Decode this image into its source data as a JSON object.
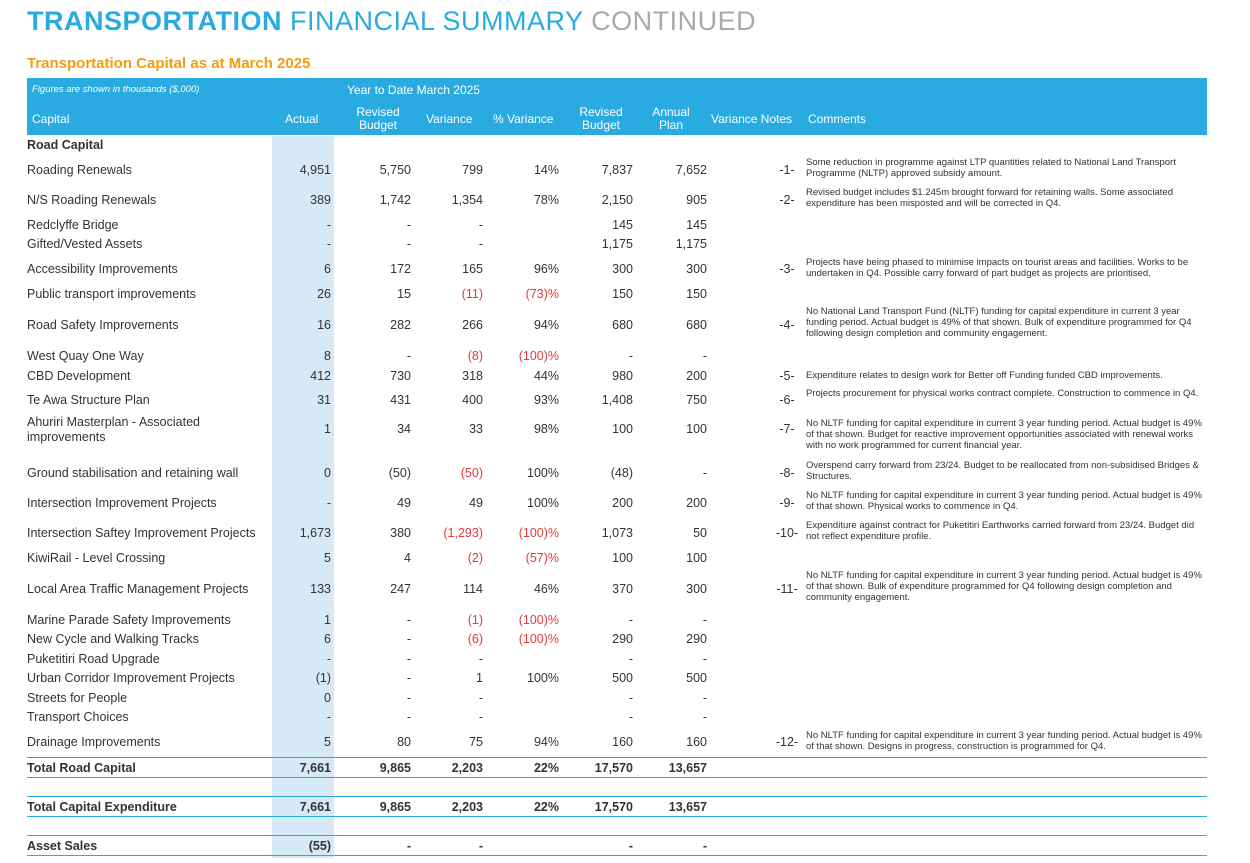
{
  "title": {
    "bold": "TRANSPORTATION",
    "mid": "FINANCIAL SUMMARY",
    "end": "CONTINUED"
  },
  "subtitle": "Transportation Capital as at March 2025",
  "header": {
    "figures_note": "Figures are shown in thousands ($,000)",
    "ytd_label": "Year to Date  March 2025",
    "capital": "Capital",
    "actual": "Actual",
    "revised_budget": "Revised Budget",
    "variance": "Variance",
    "pct_variance": "% Variance",
    "revised_budget2": "Revised Budget",
    "annual_plan": "Annual Plan",
    "variance_notes": "Variance  Notes",
    "comments": "Comments"
  },
  "section_label": "Road Capital",
  "rows": [
    {
      "name": "Roading Renewals",
      "actual": "4,951",
      "rb": "5,750",
      "var": "799",
      "pct": "14%",
      "rb2": "7,837",
      "ap": "7,652",
      "note": "-1-",
      "comment": "Some reduction in programme against LTP quantities related to National Land Transport Programme (NLTP) approved subsidy amount."
    },
    {
      "name": "N/S Roading Renewals",
      "actual": "389",
      "rb": "1,742",
      "var": "1,354",
      "pct": "78%",
      "rb2": "2,150",
      "ap": "905",
      "note": "-2-",
      "comment": "Revised budget includes $1.245m brought forward for retaining walls. Some associated expenditure has been misposted and will be corrected in Q4."
    },
    {
      "name": "Redclyffe Bridge",
      "actual": "-",
      "rb": "-",
      "var": "-",
      "pct": "",
      "rb2": "145",
      "ap": "145",
      "note": "",
      "comment": ""
    },
    {
      "name": "Gifted/Vested Assets",
      "actual": "-",
      "rb": "-",
      "var": "-",
      "pct": "",
      "rb2": "1,175",
      "ap": "1,175",
      "note": "",
      "comment": ""
    },
    {
      "name": "Accessibility Improvements",
      "actual": "6",
      "rb": "172",
      "var": "165",
      "pct": "96%",
      "rb2": "300",
      "ap": "300",
      "note": "-3-",
      "comment": "Projects have being phased to minimise impacts on tourist areas and facilities. Works to be undertaken in  Q4. Possible carry forward of part budget as projects are prioritised."
    },
    {
      "name": "Public transport improvements",
      "actual": "26",
      "rb": "15",
      "var": "(11)",
      "pct": "(73)%",
      "rb2": "150",
      "ap": "150",
      "note": "",
      "comment": ""
    },
    {
      "name": "Road Safety Improvements",
      "actual": "16",
      "rb": "282",
      "var": "266",
      "pct": "94%",
      "rb2": "680",
      "ap": "680",
      "note": "-4-",
      "comment": "No National Land Transport Fund (NLTF) funding for capital expenditure in current 3 year funding period. Actual budget is 49% of that shown. Bulk of expenditure programmed for Q4 following design completion and community engagement."
    },
    {
      "name": "West Quay One Way",
      "actual": "8",
      "rb": "-",
      "var": "(8)",
      "pct": "(100)%",
      "rb2": "-",
      "ap": "-",
      "note": "",
      "comment": ""
    },
    {
      "name": "CBD Development",
      "actual": "412",
      "rb": "730",
      "var": "318",
      "pct": "44%",
      "rb2": "980",
      "ap": "200",
      "note": "-5-",
      "comment": "Expenditure relates to design work for Better off Funding funded CBD improvements."
    },
    {
      "name": "Te Awa Structure Plan",
      "actual": "31",
      "rb": "431",
      "var": "400",
      "pct": "93%",
      "rb2": "1,408",
      "ap": "750",
      "note": "-6-",
      "comment": "Projects procurement for physical works contract complete. Construction to commence in Q4."
    },
    {
      "name": "Ahuriri Masterplan - Associated improvements",
      "actual": "1",
      "rb": "34",
      "var": "33",
      "pct": "98%",
      "rb2": "100",
      "ap": "100",
      "note": "-7-",
      "comment": "No NLTF funding for capital expenditure in current 3 year funding period. Actual budget is 49% of that shown. Budget for reactive improvement opportunities associated with renewal works with no work programmed for current financial year."
    },
    {
      "name": "Ground stabilisation and retaining wall",
      "actual": "0",
      "rb": "(50)",
      "var": "(50)",
      "pct": "100%",
      "rb2": "(48)",
      "ap": "-",
      "note": "-8-",
      "comment": "Overspend carry forward from 23/24. Budget to be reallocated from non-subsidised Bridges & Structures."
    },
    {
      "name": "Intersection Improvement Projects",
      "actual": "-",
      "rb": "49",
      "var": "49",
      "pct": "100%",
      "rb2": "200",
      "ap": "200",
      "note": "-9-",
      "comment": "No NLTF funding for capital expenditure in current 3 year funding period. Actual budget is 49% of that shown. Physical works to commence in Q4."
    },
    {
      "name": "Intersection Saftey Improvement Projects",
      "actual": "1,673",
      "rb": "380",
      "var": "(1,293)",
      "pct": "(100)%",
      "rb2": "1,073",
      "ap": "50",
      "note": "-10-",
      "comment": "Expenditure against contract for Puketitiri Earthworks carried forward from 23/24. Budget did not reflect expenditure profile."
    },
    {
      "name": "KiwiRail - Level Crossing",
      "actual": "5",
      "rb": "4",
      "var": "(2)",
      "pct": "(57)%",
      "rb2": "100",
      "ap": "100",
      "note": "",
      "comment": ""
    },
    {
      "name": "Local Area Traffic Management Projects",
      "actual": "133",
      "rb": "247",
      "var": "114",
      "pct": "46%",
      "rb2": "370",
      "ap": "300",
      "note": "-11-",
      "comment": "No NLTF funding for capital expenditure in current 3 year funding period. Actual budget is 49% of that shown. Bulk of expenditure programmed for Q4 following design completion and community engagement."
    },
    {
      "name": "Marine Parade Safety Improvements",
      "actual": "1",
      "rb": "-",
      "var": "(1)",
      "pct": "(100)%",
      "rb2": "-",
      "ap": "-",
      "note": "",
      "comment": ""
    },
    {
      "name": "New Cycle and Walking Tracks",
      "actual": "6",
      "rb": "-",
      "var": "(6)",
      "pct": "(100)%",
      "rb2": "290",
      "ap": "290",
      "note": "",
      "comment": ""
    },
    {
      "name": "Puketitiri Road Upgrade",
      "actual": "-",
      "rb": "-",
      "var": "-",
      "pct": "",
      "rb2": "-",
      "ap": "-",
      "note": "",
      "comment": ""
    },
    {
      "name": "Urban Corridor Improvement Projects",
      "actual": "(1)",
      "rb": "-",
      "var": "1",
      "pct": "100%",
      "rb2": "500",
      "ap": "500",
      "note": "",
      "comment": ""
    },
    {
      "name": "Streets for People",
      "actual": "0",
      "rb": "-",
      "var": "-",
      "pct": "",
      "rb2": "-",
      "ap": "-",
      "note": "",
      "comment": ""
    },
    {
      "name": "Transport Choices",
      "actual": "-",
      "rb": "-",
      "var": "-",
      "pct": "",
      "rb2": "-",
      "ap": "-",
      "note": "",
      "comment": ""
    },
    {
      "name": "Drainage Improvements",
      "actual": "5",
      "rb": "80",
      "var": "75",
      "pct": "94%",
      "rb2": "160",
      "ap": "160",
      "note": "-12-",
      "comment": "No NLTF funding for capital expenditure in current 3 year funding period. Actual budget is 49% of that shown. Designs in progress, construction is programmed for Q4."
    }
  ],
  "totals": [
    {
      "name": "Total Road Capital",
      "actual": "7,661",
      "rb": "9,865",
      "var": "2,203",
      "pct": "22%",
      "rb2": "17,570",
      "ap": "13,657"
    },
    {
      "name": "Total Capital Expenditure",
      "actual": "7,661",
      "rb": "9,865",
      "var": "2,203",
      "pct": "22%",
      "rb2": "17,570",
      "ap": "13,657"
    },
    {
      "name": "Asset Sales",
      "actual": "(55)",
      "rb": "-",
      "var": "-",
      "pct": "",
      "rb2": "-",
      "ap": "-"
    }
  ]
}
